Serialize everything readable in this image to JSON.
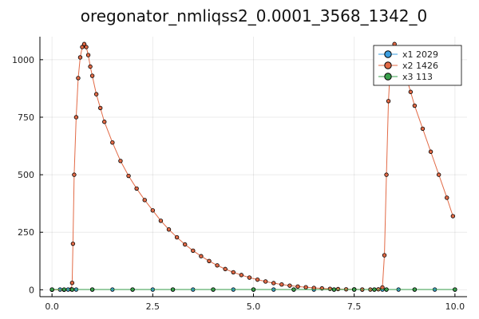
{
  "chart_data": {
    "type": "scatter",
    "title": "oregonator_nmliqss2_0.0001_3568_1342_0",
    "xlabel": "",
    "ylabel": "",
    "xlim": [
      -0.3,
      10.3
    ],
    "ylim": [
      -30,
      1100
    ],
    "x_ticks": [
      0,
      2.5,
      5,
      7.5,
      10
    ],
    "x_tick_labels": [
      "0.0",
      "2.5",
      "5.0",
      "7.5",
      "10.0"
    ],
    "y_ticks": [
      0,
      250,
      500,
      750,
      1000
    ],
    "y_tick_labels": [
      "0",
      "250",
      "500",
      "750",
      "1000"
    ],
    "grid": true,
    "legend_position": "top-right",
    "series": [
      {
        "name": "x1 2029",
        "color": "#3b9ee0",
        "x": [
          0.0,
          0.2,
          0.4,
          0.5,
          0.6,
          1.0,
          1.5,
          2.0,
          2.5,
          3.0,
          3.5,
          4.0,
          4.5,
          5.0,
          5.5,
          6.0,
          6.5,
          7.0,
          7.5,
          7.7,
          8.0,
          8.2,
          8.3,
          8.6,
          9.0,
          9.5,
          10.0
        ],
        "y": [
          1,
          1,
          1,
          1,
          1,
          1,
          1,
          1,
          1,
          1,
          1,
          1,
          1,
          1,
          1,
          1,
          1,
          1,
          1,
          1,
          1,
          1,
          1,
          1,
          1,
          1,
          1
        ]
      },
      {
        "name": "x2 1426",
        "color": "#e26a46",
        "x": [
          0.0,
          0.3,
          0.48,
          0.5,
          0.52,
          0.55,
          0.6,
          0.65,
          0.7,
          0.75,
          0.8,
          0.85,
          0.9,
          0.95,
          1.0,
          1.1,
          1.2,
          1.3,
          1.5,
          1.7,
          1.9,
          2.1,
          2.3,
          2.5,
          2.7,
          2.9,
          3.1,
          3.3,
          3.5,
          3.7,
          3.9,
          4.1,
          4.3,
          4.5,
          4.7,
          4.9,
          5.1,
          5.3,
          5.5,
          5.7,
          5.9,
          6.1,
          6.3,
          6.5,
          6.7,
          6.9,
          7.1,
          7.3,
          7.5,
          7.7,
          7.9,
          8.1,
          8.2,
          8.25,
          8.3,
          8.35,
          8.4,
          8.5,
          8.6,
          8.7,
          8.8,
          8.9,
          9.0,
          9.2,
          9.4,
          9.6,
          9.8,
          9.95
        ],
        "y": [
          0,
          0,
          2,
          30,
          200,
          500,
          750,
          920,
          1010,
          1055,
          1068,
          1055,
          1020,
          970,
          930,
          850,
          790,
          730,
          640,
          560,
          495,
          440,
          390,
          345,
          300,
          262,
          228,
          197,
          170,
          146,
          125,
          106,
          90,
          76,
          64,
          53,
          44,
          36,
          29,
          23,
          18,
          14,
          11,
          8,
          6,
          4,
          3,
          2,
          2,
          1,
          1,
          2,
          10,
          150,
          500,
          820,
          980,
          1068,
          1040,
          980,
          920,
          860,
          800,
          700,
          600,
          500,
          400,
          320
        ]
      },
      {
        "name": "x3 113",
        "color": "#3aa14c",
        "x": [
          0.0,
          0.3,
          0.5,
          1.0,
          2.0,
          3.0,
          4.0,
          5.0,
          6.0,
          7.0,
          7.5,
          8.0,
          8.3,
          9.0,
          10.0
        ],
        "y": [
          1,
          1,
          1,
          1,
          1,
          1,
          1,
          1,
          1,
          1,
          1,
          1,
          1,
          1,
          1
        ]
      }
    ]
  }
}
